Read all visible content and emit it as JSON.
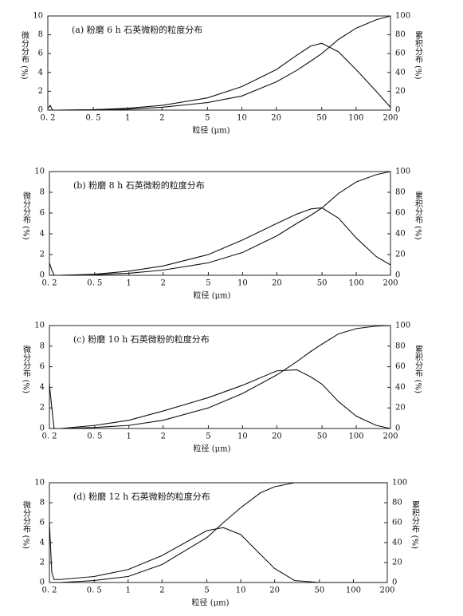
{
  "chart_data": [
    {
      "type": "line",
      "title": "(a) 粉磨 6 h 石英微粉的粒度分布",
      "xlabel": "粒径 (μm)",
      "ylabel": "微分分布 (%)",
      "y2label": "累积分布 (%)",
      "xscale": "log",
      "xlim": [
        0.2,
        200
      ],
      "xticks": [
        {
          "value": 0.2,
          "label": "0. 2"
        },
        {
          "value": 0.5,
          "label": "0. 5"
        },
        1,
        2,
        5,
        10,
        20,
        50,
        100,
        200
      ],
      "ylim": [
        0,
        10
      ],
      "yticks": [
        0,
        2,
        4,
        6,
        8,
        10
      ],
      "y2lim": [
        0,
        100
      ],
      "y2ticks": [
        0,
        20,
        40,
        60,
        80,
        100
      ],
      "x": [
        0.2,
        0.21,
        0.22,
        0.25,
        0.5,
        1,
        2,
        5,
        10,
        20,
        30,
        40,
        50,
        70,
        100,
        150,
        200
      ],
      "series": [
        {
          "color": "#111",
          "values": [
            0.2,
            0.5,
            0,
            0,
            0.05,
            0.2,
            0.5,
            1.3,
            2.5,
            4.3,
            5.8,
            6.8,
            7.1,
            6.2,
            4.3,
            2.0,
            0.3
          ]
        },
        {
          "color": "#111",
          "axis": "y2",
          "values": [
            0,
            0,
            0,
            0,
            0.3,
            1,
            3,
            8,
            15,
            30,
            42,
            52,
            60,
            75,
            87,
            96,
            100
          ]
        }
      ]
    },
    {
      "type": "line",
      "title": "(b) 粉磨 8 h 石英微粉的粒度分布",
      "xlabel": "粒径 (μm)",
      "ylabel": "微分分布 (%)",
      "y2label": "累积分布 (%)",
      "xscale": "log",
      "xlim": [
        0.2,
        200
      ],
      "xticks": [
        {
          "value": 0.2,
          "label": "0. 2"
        },
        {
          "value": 0.5,
          "label": "0. 5"
        },
        1,
        2,
        5,
        10,
        20,
        50,
        100,
        200
      ],
      "ylim": [
        0,
        10
      ],
      "yticks": [
        0,
        2,
        4,
        6,
        8,
        10
      ],
      "y2lim": [
        0,
        100
      ],
      "y2ticks": [
        0,
        20,
        40,
        60,
        80,
        100
      ],
      "x": [
        0.2,
        0.21,
        0.22,
        0.25,
        0.5,
        1,
        2,
        5,
        10,
        20,
        30,
        40,
        50,
        70,
        100,
        150,
        200
      ],
      "series": [
        {
          "color": "#111",
          "values": [
            1.2,
            0.5,
            0,
            0,
            0.1,
            0.4,
            0.9,
            2.0,
            3.4,
            5.0,
            5.9,
            6.4,
            6.5,
            5.5,
            3.6,
            1.8,
            1.0
          ]
        },
        {
          "color": "#111",
          "axis": "y2",
          "values": [
            0,
            0,
            0,
            0,
            0.5,
            2,
            5,
            12,
            22,
            38,
            50,
            58,
            65,
            79,
            90,
            97,
            100
          ]
        }
      ]
    },
    {
      "type": "line",
      "title": "(c) 粉磨 10 h 石英微粉的粒度分布",
      "xlabel": "粒径 (μm)",
      "ylabel": "微分分布 (%)",
      "y2label": "累积分布 (%)",
      "xscale": "log",
      "xlim": [
        0.2,
        200
      ],
      "xticks": [
        {
          "value": 0.2,
          "label": "0. 2"
        },
        {
          "value": 0.5,
          "label": "0. 5"
        },
        1,
        2,
        5,
        10,
        20,
        50,
        100,
        200
      ],
      "ylim": [
        0,
        10
      ],
      "yticks": [
        0,
        2,
        4,
        6,
        8,
        10
      ],
      "y2lim": [
        0,
        100
      ],
      "y2ticks": [
        0,
        20,
        40,
        60,
        80,
        100
      ],
      "x": [
        0.2,
        0.21,
        0.22,
        0.25,
        0.5,
        1,
        2,
        5,
        10,
        20,
        30,
        40,
        50,
        70,
        100,
        150,
        200
      ],
      "series": [
        {
          "color": "#111",
          "values": [
            4.3,
            2,
            0,
            0,
            0.3,
            0.8,
            1.7,
            3.0,
            4.2,
            5.6,
            5.7,
            5.0,
            4.3,
            2.6,
            1.2,
            0.3,
            0
          ]
        },
        {
          "color": "#111",
          "axis": "y2",
          "values": [
            0,
            0,
            0,
            0,
            1,
            3,
            8,
            20,
            34,
            52,
            65,
            75,
            82,
            92,
            97,
            99.5,
            100
          ]
        }
      ]
    },
    {
      "type": "line",
      "title": "(d) 粉磨 12 h 石英微粉的粒度分布",
      "xlabel": "粒径 (μm)",
      "ylabel": "微分分布 (%)",
      "y2label": "累积分布 (%)",
      "xscale": "log",
      "xlim": [
        0.2,
        200
      ],
      "xticks": [
        {
          "value": 0.2,
          "label": "0. 2"
        },
        {
          "value": 0.5,
          "label": "0. 5"
        },
        1,
        2,
        5,
        10,
        20,
        50,
        100,
        200
      ],
      "ylim": [
        0,
        10
      ],
      "yticks": [
        0,
        2,
        4,
        6,
        8,
        10
      ],
      "y2lim": [
        0,
        100
      ],
      "y2ticks": [
        0,
        20,
        40,
        60,
        80,
        100
      ],
      "x": [
        0.2,
        0.21,
        0.22,
        0.25,
        0.5,
        1,
        2,
        5,
        7,
        10,
        15,
        20,
        30,
        50,
        100,
        200
      ],
      "series": [
        {
          "color": "#111",
          "values": [
            6,
            1,
            0.3,
            0.3,
            0.6,
            1.3,
            2.7,
            5.2,
            5.5,
            4.8,
            2.8,
            1.4,
            0.2,
            0,
            0,
            0
          ]
        },
        {
          "color": "#111",
          "axis": "y2",
          "values": [
            0,
            0,
            0,
            0,
            2,
            6,
            18,
            45,
            60,
            75,
            90,
            96,
            100,
            100,
            100,
            100
          ]
        }
      ]
    }
  ]
}
